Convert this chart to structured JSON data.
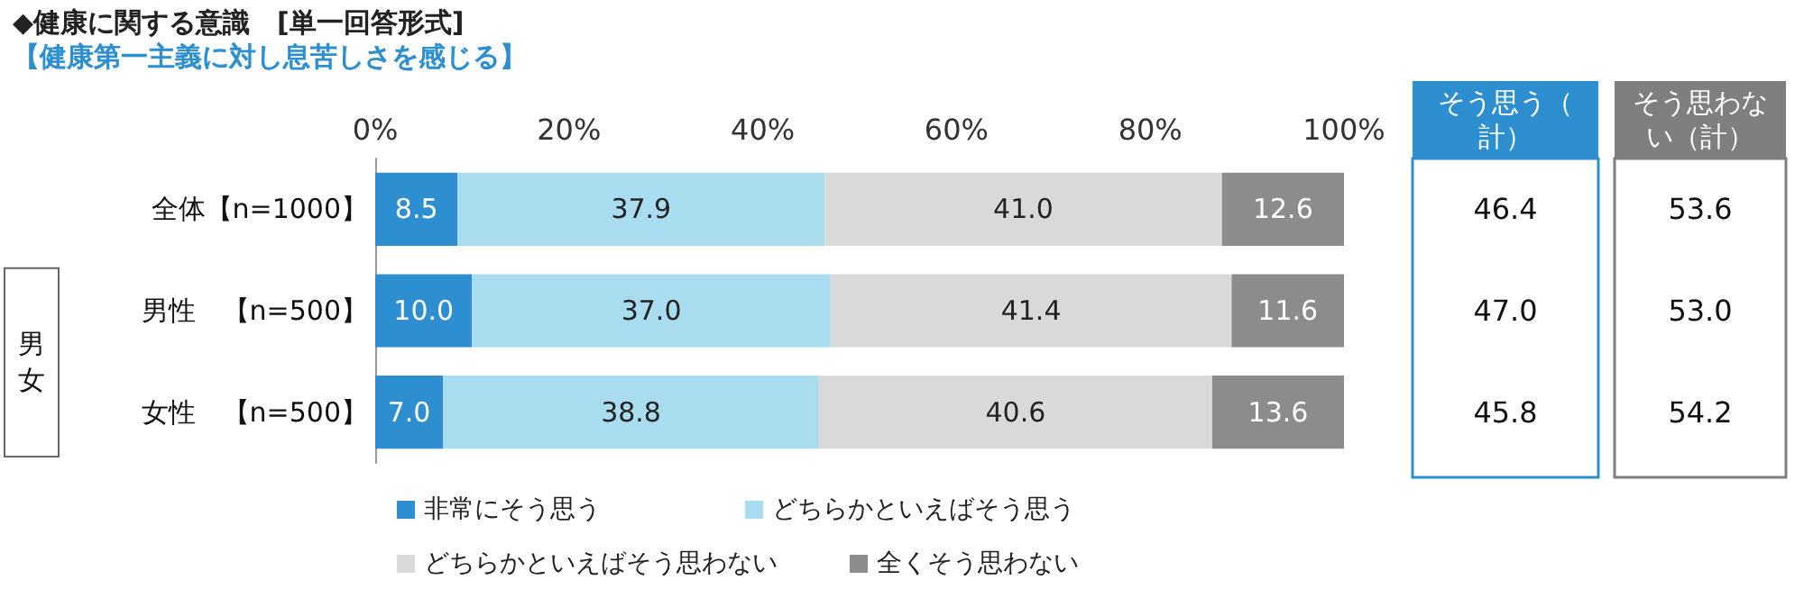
{
  "chart_data": {
    "type": "bar",
    "orientation": "horizontal",
    "stacked": true,
    "title": "◆健康に関する意識　[単一回答形式]",
    "subtitle": "【健康第一主義に対し息苦しさを感じる】",
    "categories": [
      "全体【n=1000】",
      "男性　【n=500】",
      "女性　【n=500】"
    ],
    "series": [
      {
        "name": "非常にそう思う",
        "color": "#2e8fd0",
        "values": [
          8.5,
          10.0,
          7.0
        ],
        "value_labels": [
          "8.5",
          "10.0",
          "7.0"
        ]
      },
      {
        "name": "どちらかといえばそう思う",
        "color": "#a9dcef",
        "values": [
          37.9,
          37.0,
          38.8
        ],
        "value_labels": [
          "37.9",
          "37.0",
          "38.8"
        ]
      },
      {
        "name": "どちらかといえばそう思わない",
        "color": "#d9d9d9",
        "values": [
          41.0,
          41.4,
          40.6
        ],
        "value_labels": [
          "41.0",
          "41.4",
          "40.6"
        ]
      },
      {
        "name": "全くそう思わない",
        "color": "#8c8c8c",
        "values": [
          12.6,
          11.6,
          13.6
        ],
        "value_labels": [
          "12.6",
          "11.6",
          "13.6"
        ]
      }
    ],
    "xlim": [
      0,
      100
    ],
    "xticks": [
      {
        "value": 0,
        "label": "0%"
      },
      {
        "value": 20,
        "label": "20%"
      },
      {
        "value": 40,
        "label": "40%"
      },
      {
        "value": 60,
        "label": "60%"
      },
      {
        "value": 80,
        "label": "80%"
      },
      {
        "value": 100,
        "label": "100%"
      }
    ],
    "grid": false,
    "legend": "bottom",
    "annotations": [
      "男女",
      "そう思う（計）",
      "そう思わない（計）",
      "46.4",
      "53.6",
      "47.0",
      "53.0",
      "45.8",
      "54.2"
    ]
  }
}
